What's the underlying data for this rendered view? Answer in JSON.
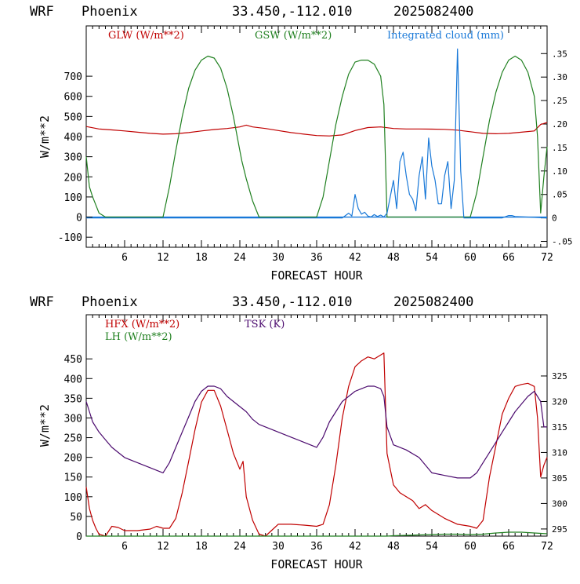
{
  "chart_data": [
    {
      "type": "line",
      "header": {
        "model": "WRF",
        "location": "Phoenix",
        "coords": "33.450,-112.010",
        "run": "2025082400"
      },
      "xlabel": "FORECAST HOUR",
      "ylabel": "W/m**2",
      "xlim": [
        0,
        72
      ],
      "x_ticks": [
        6,
        12,
        18,
        24,
        30,
        36,
        42,
        48,
        54,
        60,
        66,
        72
      ],
      "ylim": [
        -150,
        950
      ],
      "y_ticks": [
        -100,
        0,
        100,
        200,
        300,
        400,
        500,
        600,
        700
      ],
      "y2lim": [
        -0.0625,
        0.409
      ],
      "y2_ticks": [
        -0.05,
        0,
        0.05,
        0.1,
        0.15,
        0.2,
        0.25,
        0.3,
        0.35
      ],
      "y2_tick_labels": [
        "-.05",
        "0",
        ".05",
        ".10",
        ".15",
        ".20",
        ".25",
        ".30",
        ".35"
      ],
      "zero_line": true,
      "series": [
        {
          "name": "GLW (W/m**2)",
          "color": "#c00000",
          "axis": "left",
          "x": [
            0,
            2,
            4,
            6,
            8,
            10,
            12,
            14,
            16,
            18,
            20,
            22,
            24,
            25,
            26,
            28,
            30,
            32,
            34,
            36,
            38,
            40,
            42,
            44,
            46,
            48,
            50,
            52,
            54,
            56,
            58,
            60,
            62,
            64,
            66,
            68,
            70,
            71,
            72
          ],
          "y": [
            450,
            438,
            433,
            428,
            422,
            416,
            412,
            414,
            420,
            428,
            435,
            440,
            448,
            457,
            448,
            440,
            430,
            420,
            412,
            405,
            403,
            408,
            430,
            445,
            448,
            440,
            438,
            438,
            437,
            436,
            432,
            424,
            416,
            414,
            416,
            422,
            428,
            460,
            470
          ]
        },
        {
          "name": "GSW (W/m**2)",
          "color": "#208020",
          "axis": "left",
          "x": [
            0,
            0.5,
            1,
            1.5,
            2,
            3,
            12,
            13,
            14,
            15,
            16,
            17,
            18,
            19,
            20,
            21,
            22,
            23,
            24,
            24.3,
            25,
            26,
            27,
            36,
            37,
            38,
            39,
            40,
            41,
            42,
            43,
            44,
            45,
            46,
            46.5,
            47,
            48,
            60,
            61,
            62,
            63,
            64,
            65,
            66,
            67,
            68,
            69,
            70,
            70.5,
            71,
            71.5,
            72
          ],
          "y": [
            300,
            150,
            100,
            60,
            20,
            0,
            0,
            150,
            330,
            500,
            640,
            730,
            780,
            800,
            790,
            740,
            640,
            500,
            330,
            280,
            190,
            80,
            0,
            0,
            100,
            280,
            460,
            600,
            710,
            770,
            780,
            780,
            760,
            700,
            560,
            0,
            0,
            0,
            120,
            300,
            480,
            620,
            720,
            780,
            800,
            780,
            720,
            600,
            400,
            20,
            200,
            350
          ]
        },
        {
          "name": "Integrated cloud (mm)",
          "color": "#1878d8",
          "axis": "right",
          "x": [
            0,
            40,
            40.5,
            41,
            41.5,
            42,
            42.5,
            43,
            43.5,
            44,
            44.5,
            45,
            45.5,
            46,
            46.5,
            47,
            48,
            48.5,
            49,
            49.5,
            50,
            50.5,
            51,
            51.5,
            52,
            52.5,
            53,
            53.5,
            54,
            54.5,
            55,
            55.5,
            56,
            56.5,
            57,
            57.5,
            58,
            58.5,
            59,
            60,
            62,
            64,
            65,
            66,
            66.5,
            67,
            72
          ],
          "y": [
            0,
            0,
            0.005,
            0.01,
            0.004,
            0.05,
            0.02,
            0.008,
            0.012,
            0.004,
            0.002,
            0.007,
            0.003,
            0.006,
            0.002,
            0.01,
            0.08,
            0.02,
            0.12,
            0.14,
            0.09,
            0.05,
            0.04,
            0.015,
            0.09,
            0.13,
            0.04,
            0.17,
            0.11,
            0.08,
            0.03,
            0.03,
            0.09,
            0.12,
            0.02,
            0.08,
            0.36,
            0.1,
            0,
            0,
            0,
            0,
            0,
            0.005,
            0.005,
            0.003,
            0
          ]
        }
      ]
    },
    {
      "type": "line",
      "header": {
        "model": "WRF",
        "location": "Phoenix",
        "coords": "33.450,-112.010",
        "run": "2025082400"
      },
      "xlabel": "FORECAST HOUR",
      "ylabel": "W/m**2",
      "xlim": [
        0,
        72
      ],
      "x_ticks": [
        6,
        12,
        18,
        24,
        30,
        36,
        42,
        48,
        54,
        60,
        66,
        72
      ],
      "ylim": [
        0,
        562
      ],
      "y_ticks": [
        0,
        50,
        100,
        150,
        200,
        250,
        300,
        350,
        400,
        450
      ],
      "y2lim": [
        293.6,
        337.0
      ],
      "y2_ticks": [
        295,
        300,
        305,
        310,
        315,
        320,
        325
      ],
      "y2_tick_labels": [
        "295",
        "300",
        "305",
        "310",
        "315",
        "320",
        "325"
      ],
      "series": [
        {
          "name": "HFX (W/m**2)",
          "color": "#c00000",
          "axis": "left",
          "x": [
            0,
            0.5,
            1,
            1.5,
            2,
            3,
            4,
            5,
            6,
            8,
            10,
            11,
            12,
            13,
            14,
            15,
            16,
            17,
            18,
            19,
            20,
            21,
            22,
            23,
            24,
            24.5,
            25,
            26,
            27,
            28,
            29,
            30,
            32,
            34,
            36,
            37,
            38,
            39,
            40,
            41,
            42,
            43,
            44,
            45,
            46,
            46.5,
            47,
            48,
            49,
            50,
            51,
            52,
            53,
            54,
            56,
            58,
            60,
            61,
            62,
            63,
            64,
            65,
            66,
            67,
            68,
            69,
            70,
            70.5,
            71,
            71.5,
            72
          ],
          "y": [
            125,
            70,
            40,
            20,
            5,
            0,
            25,
            22,
            14,
            14,
            18,
            25,
            20,
            20,
            45,
            110,
            190,
            270,
            340,
            370,
            370,
            330,
            270,
            210,
            170,
            190,
            100,
            40,
            5,
            0,
            15,
            30,
            30,
            28,
            25,
            30,
            80,
            180,
            300,
            380,
            430,
            445,
            455,
            450,
            460,
            465,
            210,
            130,
            110,
            100,
            90,
            70,
            80,
            65,
            45,
            30,
            25,
            20,
            40,
            150,
            230,
            310,
            350,
            380,
            385,
            388,
            380,
            300,
            150,
            180,
            200
          ]
        },
        {
          "name": "LH (W/m**2)",
          "color": "#208020",
          "axis": "left",
          "x": [
            0,
            45,
            46,
            47,
            48,
            50,
            52,
            54,
            56,
            58,
            60,
            62,
            64,
            66,
            68,
            70,
            72
          ],
          "y": [
            0,
            0,
            0,
            0,
            1,
            2,
            3,
            4,
            5,
            5,
            4,
            5,
            8,
            10,
            10,
            8,
            6
          ]
        },
        {
          "name": "TSK (K)",
          "color": "#4b0a6e",
          "axis": "right",
          "x": [
            0,
            0.5,
            1,
            2,
            3,
            4,
            5,
            6,
            8,
            10,
            12,
            13,
            14,
            15,
            16,
            17,
            18,
            19,
            20,
            21,
            22,
            23,
            24,
            25,
            26,
            27,
            28,
            30,
            32,
            34,
            36,
            37,
            38,
            39,
            40,
            41,
            42,
            43,
            44,
            45,
            46,
            46.5,
            47,
            48,
            49,
            50,
            52,
            54,
            56,
            58,
            60,
            61,
            62,
            63,
            64,
            65,
            66,
            67,
            68,
            69,
            70,
            71,
            71.5,
            72
          ],
          "y": [
            320,
            318,
            316,
            314,
            312.5,
            311,
            310,
            309,
            308,
            307,
            306,
            308,
            311,
            314,
            317,
            320,
            322,
            323,
            323,
            322.5,
            321,
            320,
            319,
            318,
            316.5,
            315.5,
            315,
            314,
            313,
            312,
            311,
            313,
            316,
            318,
            320,
            321,
            322,
            322.5,
            323,
            323,
            322.5,
            321,
            315,
            311.5,
            311,
            310.5,
            309,
            306,
            305.5,
            305,
            305,
            306,
            308,
            310,
            312,
            314,
            316,
            318,
            319.5,
            321,
            322,
            320,
            315,
            315
          ]
        }
      ]
    }
  ]
}
